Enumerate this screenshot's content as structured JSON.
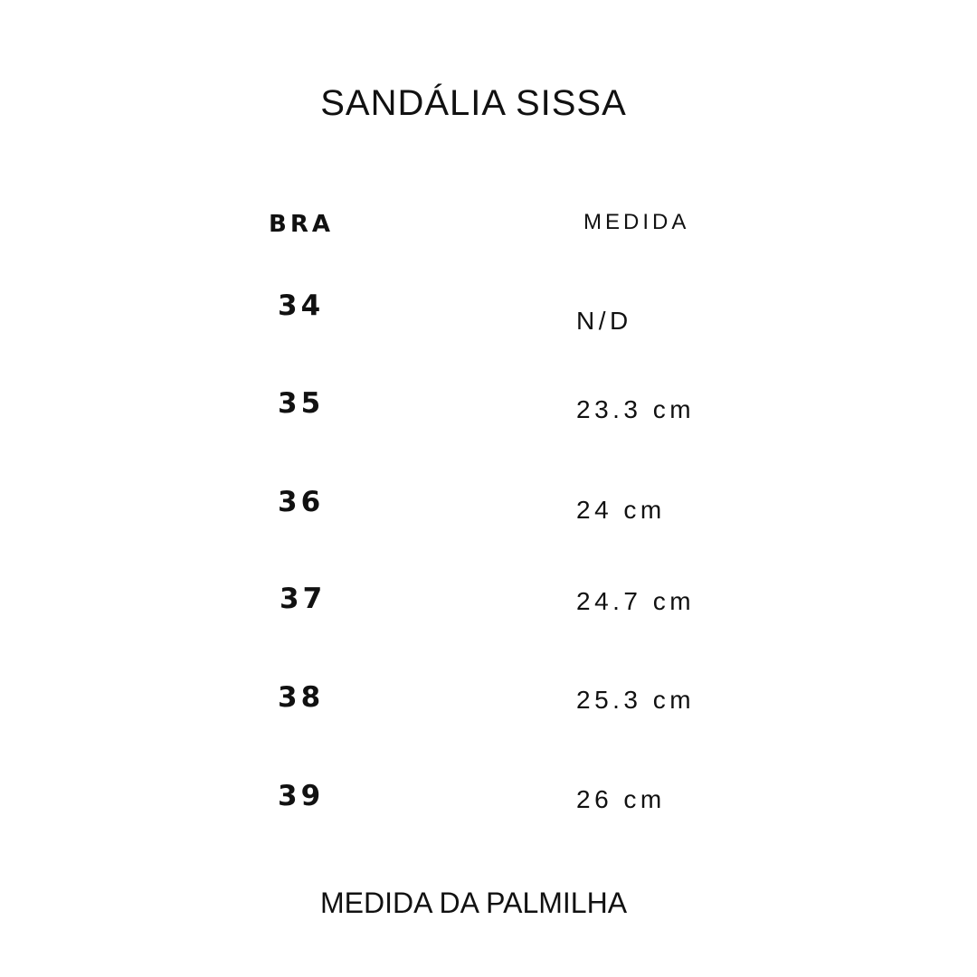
{
  "title": "SANDÁLIA SISSA",
  "table": {
    "headers": {
      "size": "BRA",
      "measure": "MEDIDA"
    },
    "rows": [
      {
        "size": "34",
        "measure": "N/D"
      },
      {
        "size": "35",
        "measure": "23.3 cm"
      },
      {
        "size": "36",
        "measure": "24 cm"
      },
      {
        "size": "37",
        "measure": "24.7 cm"
      },
      {
        "size": "38",
        "measure": "25.3 cm"
      },
      {
        "size": "39",
        "measure": "26 cm"
      }
    ]
  },
  "footer": "MEDIDA DA PALMILHA"
}
